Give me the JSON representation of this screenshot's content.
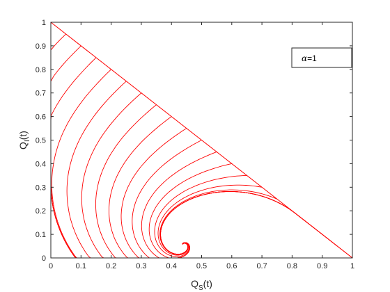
{
  "chart_data": {
    "type": "line",
    "title": "",
    "xlabel": {
      "main": "Q",
      "sub": "S",
      "suffix": "(t)"
    },
    "ylabel": {
      "main": "Q",
      "sub": "I",
      "suffix": "(t)"
    },
    "xlim": [
      0,
      1
    ],
    "ylim": [
      0,
      1
    ],
    "xticks": [
      "0",
      "0.1",
      "0.2",
      "0.3",
      "0.4",
      "0.5",
      "0.6",
      "0.7",
      "0.8",
      "0.9",
      "1"
    ],
    "yticks": [
      "0",
      "0.1",
      "0.2",
      "0.3",
      "0.4",
      "0.5",
      "0.6",
      "0.7",
      "0.8",
      "0.9",
      "1"
    ],
    "grid": false,
    "legend": {
      "symbol": "α",
      "text": "=1",
      "placement": "top-right"
    },
    "line_color": "#ff0000",
    "equilibrium": {
      "x": 0.44,
      "y": 0.055
    },
    "series": [
      {
        "start": [
          0.0,
          1.0
        ]
      },
      {
        "start": [
          0.05,
          0.95
        ]
      },
      {
        "start": [
          0.1,
          0.9
        ]
      },
      {
        "start": [
          0.15,
          0.85
        ]
      },
      {
        "start": [
          0.2,
          0.8
        ]
      },
      {
        "start": [
          0.25,
          0.75
        ]
      },
      {
        "start": [
          0.3,
          0.7
        ]
      },
      {
        "start": [
          0.35,
          0.65
        ]
      },
      {
        "start": [
          0.4,
          0.6
        ]
      },
      {
        "start": [
          0.45,
          0.55
        ]
      },
      {
        "start": [
          0.5,
          0.5
        ]
      },
      {
        "start": [
          0.55,
          0.45
        ]
      },
      {
        "start": [
          0.6,
          0.4
        ]
      },
      {
        "start": [
          0.65,
          0.35
        ]
      },
      {
        "start": [
          0.7,
          0.3
        ]
      },
      {
        "start": [
          0.75,
          0.25
        ]
      },
      {
        "start": [
          0.8,
          0.2
        ]
      },
      {
        "start": [
          0.85,
          0.15
        ]
      },
      {
        "start": [
          0.9,
          0.1
        ]
      },
      {
        "start": [
          0.95,
          0.05
        ]
      },
      {
        "start": [
          1.0,
          0.0
        ]
      }
    ]
  }
}
